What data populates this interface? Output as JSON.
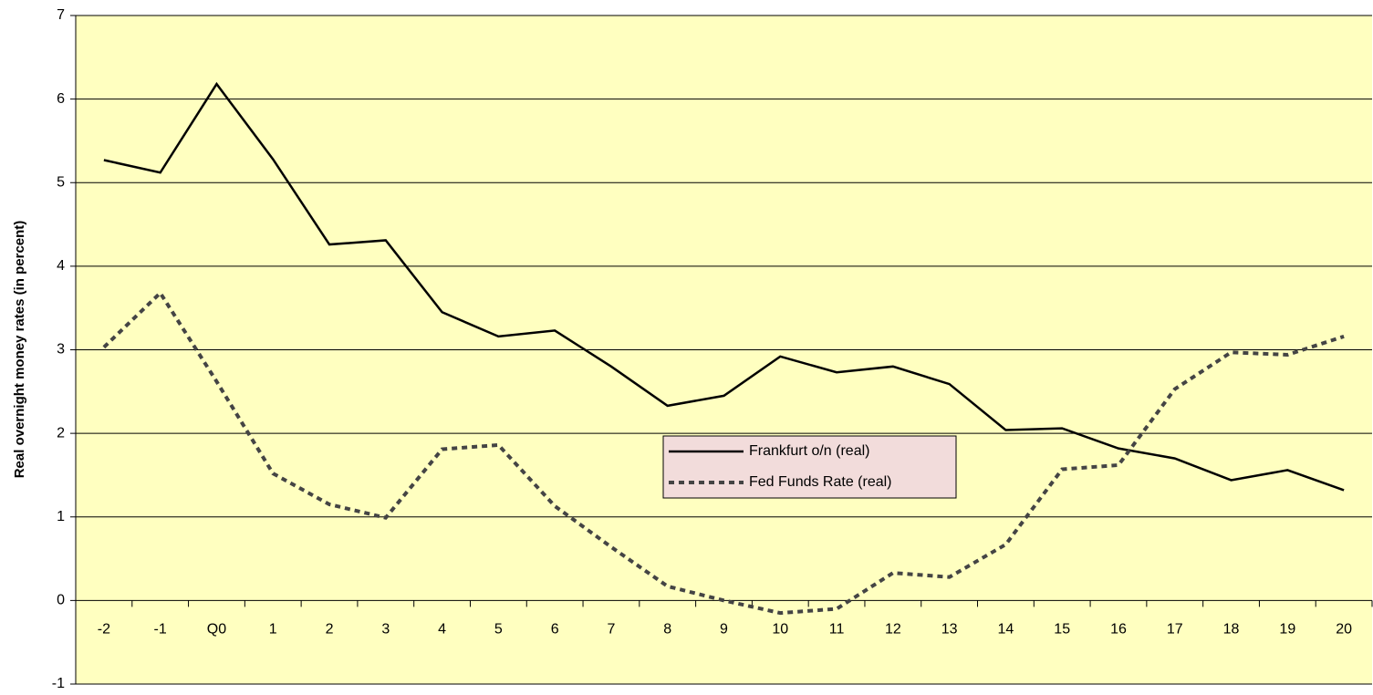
{
  "chart_data": {
    "type": "line",
    "y_label": "Real overnight money rates (in percent)",
    "categories": [
      "-2",
      "-1",
      "Q0",
      "1",
      "2",
      "3",
      "4",
      "5",
      "6",
      "7",
      "8",
      "9",
      "10",
      "11",
      "12",
      "13",
      "14",
      "15",
      "16",
      "17",
      "18",
      "19",
      "20"
    ],
    "series": [
      {
        "name": "Frankfurt o/n (real)",
        "color": "#000000",
        "line_style": "solid",
        "values": [
          5.27,
          5.12,
          6.18,
          5.28,
          4.26,
          4.31,
          3.45,
          3.16,
          3.23,
          2.8,
          2.33,
          2.45,
          2.92,
          2.73,
          2.8,
          2.59,
          2.04,
          2.06,
          1.82,
          1.7,
          1.44,
          1.56,
          1.32
        ]
      },
      {
        "name": "Fed Funds Rate (real)",
        "color": "#444444",
        "line_style": "dotted",
        "values": [
          3.03,
          3.68,
          2.62,
          1.52,
          1.15,
          0.99,
          1.81,
          1.86,
          1.13,
          0.64,
          0.17,
          0.0,
          -0.15,
          -0.1,
          0.33,
          0.28,
          0.67,
          1.57,
          1.62,
          2.53,
          2.97,
          2.94,
          3.16
        ]
      }
    ],
    "ylim": [
      -1,
      7
    ],
    "yticks": [
      -1,
      0,
      1,
      2,
      3,
      4,
      5,
      6,
      7
    ],
    "grid": true,
    "background": "#ffffc0",
    "legend_background": "#f2dcdb",
    "legend": "center"
  }
}
